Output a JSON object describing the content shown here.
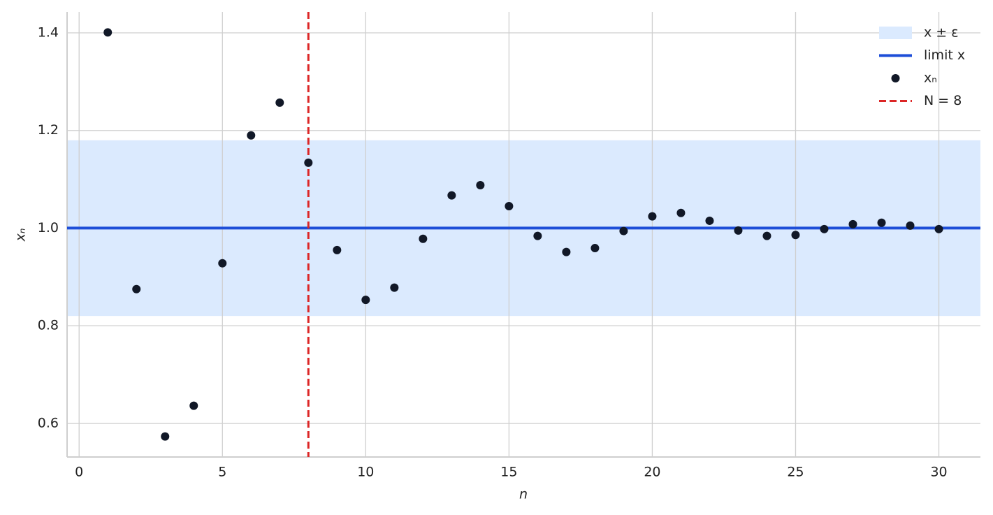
{
  "chart_data": {
    "type": "scatter",
    "xlabel": "n",
    "ylabel": "xₙ",
    "x": [
      1,
      2,
      3,
      4,
      5,
      6,
      7,
      8,
      9,
      10,
      11,
      12,
      13,
      14,
      15,
      16,
      17,
      18,
      19,
      20,
      21,
      22,
      23,
      24,
      25,
      26,
      27,
      28,
      29,
      30
    ],
    "series": [
      {
        "name": "xₙ",
        "color": "#111827",
        "values": [
          1.401,
          0.875,
          0.573,
          0.636,
          0.928,
          1.19,
          1.257,
          1.134,
          0.955,
          0.853,
          0.878,
          0.978,
          1.067,
          1.088,
          1.045,
          0.984,
          0.951,
          0.959,
          0.994,
          1.024,
          1.031,
          1.015,
          0.995,
          0.984,
          0.986,
          0.998,
          1.008,
          1.011,
          1.005,
          0.998
        ]
      }
    ],
    "band": {
      "name": "x ± ε",
      "color": "#dbeafe",
      "range": [
        0.82,
        1.18
      ]
    },
    "hline": {
      "name": "limit x",
      "color": "#1d4ed8",
      "value": 1
    },
    "vline": {
      "name": "N = 8",
      "color": "#dc2626",
      "value": 8
    },
    "xlim": [
      -0.42,
      31.45
    ],
    "ylim": [
      0.531,
      1.443
    ],
    "xticks": [
      0,
      5,
      10,
      15,
      20,
      25,
      30
    ],
    "yticks": [
      0.6,
      0.8,
      {
        "value": 1,
        "label": "1.0"
      },
      1.2,
      1.4
    ],
    "grid": true,
    "legend": "upper right"
  }
}
